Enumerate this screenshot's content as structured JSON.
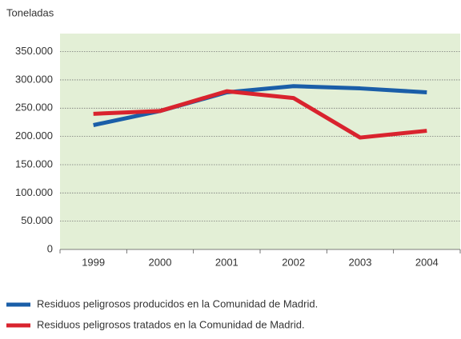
{
  "chart_data": {
    "type": "line",
    "y_label": "Toneladas",
    "categories": [
      "1999",
      "2000",
      "2001",
      "2002",
      "2003",
      "2004"
    ],
    "series": [
      {
        "name": "Residuos peligrosos producidos en la Comunidad de Madrid.",
        "color": "#1a5ea8",
        "values": [
          220000,
          245000,
          278000,
          289000,
          285000,
          278000
        ]
      },
      {
        "name": "Residuos peligrosos tratados en la Comunidad de Madrid.",
        "color": "#d9232e",
        "values": [
          240000,
          245000,
          280000,
          268000,
          198000,
          210000
        ]
      }
    ],
    "ylim": [
      0,
      382000
    ],
    "yticks": [
      {
        "value": 0,
        "label": "0"
      },
      {
        "value": 50000,
        "label": "50.000"
      },
      {
        "value": 100000,
        "label": "100.000"
      },
      {
        "value": 150000,
        "label": "150.000"
      },
      {
        "value": 200000,
        "label": "200.000"
      },
      {
        "value": 250000,
        "label": "250.000"
      },
      {
        "value": 300000,
        "label": "300.000"
      },
      {
        "value": 350000,
        "label": "350.000"
      }
    ],
    "grid": true,
    "plot_background": "#e3efd6"
  }
}
